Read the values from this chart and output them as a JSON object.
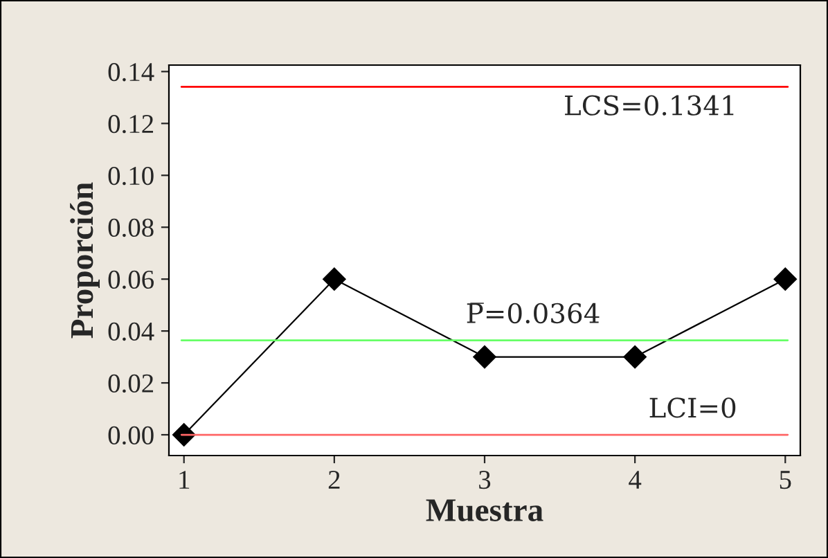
{
  "chart_data": {
    "type": "line",
    "xlabel": "Muestra",
    "ylabel": "Proporción",
    "x": [
      1,
      2,
      3,
      4,
      5
    ],
    "series": [
      {
        "color": "#000000",
        "values": [
          0.0,
          0.06,
          0.03,
          0.03,
          0.06
        ]
      }
    ],
    "marker": "diamond",
    "xlim": [
      0.9,
      5.1
    ],
    "xticks": [
      1,
      2,
      3,
      4,
      5
    ],
    "ylim": [
      -0.008,
      0.1425
    ],
    "yticks": [
      {
        "value": 0,
        "label": "0.00"
      },
      {
        "value": 0.02,
        "label": "0.02"
      },
      {
        "value": 0.04,
        "label": "0.04"
      },
      {
        "value": 0.06,
        "label": "0.06"
      },
      {
        "value": 0.08,
        "label": "0.08"
      },
      {
        "value": 0.1,
        "label": "0.10"
      },
      {
        "value": 0.12,
        "label": "0.12"
      },
      {
        "value": 0.14,
        "label": "0.14"
      }
    ],
    "ref_lines": [
      {
        "axis": "y",
        "value": 0.1341,
        "label": "LCS=0.1341",
        "color": "#ff0000"
      },
      {
        "axis": "y",
        "value": 0.0364,
        "label": "P̅=0.0364",
        "color": "#66ff66"
      },
      {
        "axis": "y",
        "value": 0,
        "label": "LCI=0",
        "color": "#ff6666"
      }
    ],
    "grid": false
  }
}
